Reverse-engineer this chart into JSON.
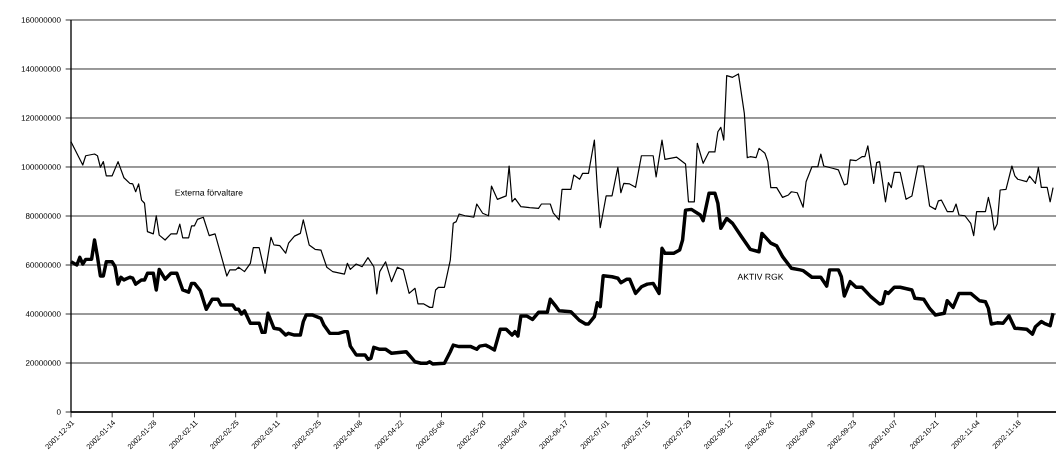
{
  "chart_data": {
    "type": "line",
    "xlim": [
      "2001-12-31",
      "2002-12-01"
    ],
    "xticks": [
      "2001-12-31",
      "2002-01-14",
      "2002-01-28",
      "2002-02-11",
      "2002-02-25",
      "2002-03-11",
      "2002-03-25",
      "2002-04-08",
      "2002-04-22",
      "2002-05-06",
      "2002-05-20",
      "2002-06-03",
      "2002-06-17",
      "2002-07-01",
      "2002-07-15",
      "2002-07-29",
      "2002-08-12",
      "2002-08-26",
      "2002-09-09",
      "2002-09-23",
      "2002-10-07",
      "2002-10-21",
      "2002-11-04",
      "2002-11-18"
    ],
    "ylim": [
      0,
      160000000
    ],
    "yticks": [
      0,
      20000000,
      40000000,
      60000000,
      80000000,
      100000000,
      120000000,
      140000000,
      160000000
    ],
    "grid": "y",
    "legend": false,
    "line_style": "solid",
    "series": [
      {
        "name": "Externa förvaltare",
        "color": "#000000",
        "x": [
          "2001-12-31",
          "2002-01-04",
          "2002-01-05",
          "2002-01-08",
          "2002-01-09",
          "2002-01-10",
          "2002-01-11",
          "2002-01-12",
          "2002-01-14",
          "2002-01-16",
          "2002-01-18",
          "2002-01-20",
          "2002-01-21",
          "2002-01-22",
          "2002-01-23",
          "2002-01-24",
          "2002-01-25",
          "2002-01-26",
          "2002-01-28",
          "2002-01-29",
          "2002-01-30",
          "2002-02-01",
          "2002-02-03",
          "2002-02-05",
          "2002-02-06",
          "2002-02-07",
          "2002-02-09",
          "2002-02-10",
          "2002-02-11",
          "2002-02-12",
          "2002-02-14",
          "2002-02-16",
          "2002-02-18",
          "2002-02-20",
          "2002-02-22",
          "2002-02-23",
          "2002-02-25",
          "2002-02-26",
          "2002-02-28",
          "2002-03-02",
          "2002-03-03",
          "2002-03-05",
          "2002-03-07",
          "2002-03-09",
          "2002-03-10",
          "2002-03-12",
          "2002-03-14",
          "2002-03-15",
          "2002-03-17",
          "2002-03-19",
          "2002-03-20",
          "2002-03-22",
          "2002-03-24",
          "2002-03-26",
          "2002-03-28",
          "2002-03-30",
          "2002-04-03",
          "2002-04-04",
          "2002-04-05",
          "2002-04-07",
          "2002-04-09",
          "2002-04-11",
          "2002-04-13",
          "2002-04-14",
          "2002-04-15",
          "2002-04-17",
          "2002-04-19",
          "2002-04-21",
          "2002-04-23",
          "2002-04-25",
          "2002-04-27",
          "2002-04-28",
          "2002-04-30",
          "2002-05-02",
          "2002-05-03",
          "2002-05-04",
          "2002-05-05",
          "2002-05-07",
          "2002-05-09",
          "2002-05-10",
          "2002-05-11",
          "2002-05-12",
          "2002-05-14",
          "2002-05-17",
          "2002-05-18",
          "2002-05-20",
          "2002-05-22",
          "2002-05-23",
          "2002-05-25",
          "2002-05-28",
          "2002-05-29",
          "2002-05-30",
          "2002-05-31",
          "2002-06-02",
          "2002-06-05",
          "2002-06-08",
          "2002-06-09",
          "2002-06-12",
          "2002-06-13",
          "2002-06-15",
          "2002-06-16",
          "2002-06-19",
          "2002-06-20",
          "2002-06-22",
          "2002-06-23",
          "2002-06-25",
          "2002-06-27",
          "2002-06-28",
          "2002-06-29",
          "2002-07-01",
          "2002-07-03",
          "2002-07-05",
          "2002-07-06",
          "2002-07-07",
          "2002-07-09",
          "2002-07-11",
          "2002-07-13",
          "2002-07-17",
          "2002-07-18",
          "2002-07-20",
          "2002-07-21",
          "2002-07-25",
          "2002-07-28",
          "2002-07-29",
          "2002-07-31",
          "2002-08-01",
          "2002-08-03",
          "2002-08-05",
          "2002-08-07",
          "2002-08-08",
          "2002-08-09",
          "2002-08-10",
          "2002-08-11",
          "2002-08-13",
          "2002-08-15",
          "2002-08-17",
          "2002-08-18",
          "2002-08-19",
          "2002-08-21",
          "2002-08-22",
          "2002-08-24",
          "2002-08-25",
          "2002-08-26",
          "2002-08-28",
          "2002-08-30",
          "2002-09-01",
          "2002-09-02",
          "2002-09-04",
          "2002-09-06",
          "2002-09-07",
          "2002-09-09",
          "2002-09-11",
          "2002-09-12",
          "2002-09-13",
          "2002-09-16",
          "2002-09-18",
          "2002-09-20",
          "2002-09-21",
          "2002-09-22",
          "2002-09-24",
          "2002-09-26",
          "2002-09-27",
          "2002-09-28",
          "2002-09-30",
          "2002-10-01",
          "2002-10-02",
          "2002-10-04",
          "2002-10-05",
          "2002-10-06",
          "2002-10-07",
          "2002-10-09",
          "2002-10-11",
          "2002-10-13",
          "2002-10-15",
          "2002-10-17",
          "2002-10-19",
          "2002-10-21",
          "2002-10-22",
          "2002-10-23",
          "2002-10-25",
          "2002-10-27",
          "2002-10-28",
          "2002-10-29",
          "2002-10-31",
          "2002-11-02",
          "2002-11-03",
          "2002-11-04",
          "2002-11-07",
          "2002-11-08",
          "2002-11-09",
          "2002-11-10",
          "2002-11-11",
          "2002-11-12",
          "2002-11-14",
          "2002-11-16",
          "2002-11-17",
          "2002-11-18",
          "2002-11-21",
          "2002-11-22",
          "2002-11-24",
          "2002-11-25",
          "2002-11-26",
          "2002-11-28",
          "2002-11-29",
          "2002-11-30"
        ],
        "values": [
          110300000.0,
          100800000.0,
          104600000.0,
          105300000.0,
          104600000.0,
          99900000.0,
          102200000.0,
          96400000.0,
          96400000.0,
          102200000.0,
          95600000.0,
          93300000.0,
          93100000.0,
          89900000.0,
          93100000.0,
          86500000.0,
          85200000.0,
          73600000.0,
          72700000.0,
          80100000.0,
          72200000.0,
          70200000.0,
          72700000.0,
          72700000.0,
          76700000.0,
          71100000.0,
          71100000.0,
          76000000.0,
          76000000.0,
          78600000.0,
          79500000.0,
          72000000.0,
          72700000.0,
          64100000.0,
          55500000.0,
          58000000.0,
          58000000.0,
          59100000.0,
          57300000.0,
          60700000.0,
          67100000.0,
          67100000.0,
          56600000.0,
          71300000.0,
          68200000.0,
          67900000.0,
          64800000.0,
          68900000.0,
          71800000.0,
          72900000.0,
          78400000.0,
          68200000.0,
          66400000.0,
          66100000.0,
          59100000.0,
          57300000.0,
          56300000.0,
          60700000.0,
          58200000.0,
          60400000.0,
          59300000.0,
          63000000.0,
          59300000.0,
          48200000.0,
          57300000.0,
          61300000.0,
          53200000.0,
          59100000.0,
          58000000.0,
          48400000.0,
          50500000.0,
          44100000.0,
          44100000.0,
          42700000.0,
          42700000.0,
          49800000.0,
          50900000.0,
          50900000.0,
          62000000.0,
          77000000.0,
          77700000.0,
          80800000.0,
          80100000.0,
          79500000.0,
          84900000.0,
          81100000.0,
          80100000.0,
          92200000.0,
          86800000.0,
          88200000.0,
          100400000.0,
          85800000.0,
          87200000.0,
          83800000.0,
          83400000.0,
          83100000.0,
          84900000.0,
          84900000.0,
          81300000.0,
          78400000.0,
          90900000.0,
          90900000.0,
          96700000.0,
          95000000.0,
          97400000.0,
          97400000.0,
          111000000.0,
          91300000.0,
          75200000.0,
          88200000.0,
          88200000.0,
          99900000.0,
          89500000.0,
          93300000.0,
          93100000.0,
          91700000.0,
          104600000.0,
          104600000.0,
          96000000.0,
          111000000.0,
          103100000.0,
          104000000.0,
          101200000.0,
          85800000.0,
          85800000.0,
          109700000.0,
          101500000.0,
          106200000.0,
          106200000.0,
          114400000.0,
          116200000.0,
          111000000.0,
          137300000.0,
          136600000.0,
          138000000.0,
          121900000.0,
          103800000.0,
          104200000.0,
          103800000.0,
          107600000.0,
          105600000.0,
          102200000.0,
          91600000.0,
          91600000.0,
          87600000.0,
          88600000.0,
          89900000.0,
          89500000.0,
          83600000.0,
          94000000.0,
          100100000.0,
          100100000.0,
          105300000.0,
          100400000.0,
          99500000.0,
          98800000.0,
          92700000.0,
          93100000.0,
          102900000.0,
          102600000.0,
          104200000.0,
          104200000.0,
          108600000.0,
          93300000.0,
          101800000.0,
          102200000.0,
          85800000.0,
          93600000.0,
          91600000.0,
          97800000.0,
          97800000.0,
          86800000.0,
          88200000.0,
          100400000.0,
          100400000.0,
          84100000.0,
          82700000.0,
          86200000.0,
          86500000.0,
          81800000.0,
          81800000.0,
          84900000.0,
          80400000.0,
          80100000.0,
          77000000.0,
          72000000.0,
          81800000.0,
          81800000.0,
          87600000.0,
          82400000.0,
          74300000.0,
          76700000.0,
          90600000.0,
          90900000.0,
          100400000.0,
          96400000.0,
          95000000.0,
          94000000.0,
          96300000.0,
          93300000.0,
          99900000.0,
          91700000.0,
          91700000.0,
          85800000.0,
          91600000.0
        ]
      },
      {
        "name": "AKTIV RGK",
        "color": "#000000",
        "x": [
          "2001-12-31",
          "2002-01-02",
          "2002-01-03",
          "2002-01-04",
          "2002-01-05",
          "2002-01-07",
          "2002-01-08",
          "2002-01-09",
          "2002-01-10",
          "2002-01-11",
          "2002-01-12",
          "2002-01-14",
          "2002-01-15",
          "2002-01-16",
          "2002-01-17",
          "2002-01-18",
          "2002-01-20",
          "2002-01-21",
          "2002-01-22",
          "2002-01-24",
          "2002-01-25",
          "2002-01-26",
          "2002-01-28",
          "2002-01-29",
          "2002-01-30",
          "2002-02-01",
          "2002-02-03",
          "2002-02-05",
          "2002-02-07",
          "2002-02-09",
          "2002-02-10",
          "2002-02-11",
          "2002-02-13",
          "2002-02-15",
          "2002-02-17",
          "2002-02-19",
          "2002-02-20",
          "2002-02-24",
          "2002-02-25",
          "2002-02-26",
          "2002-02-27",
          "2002-02-28",
          "2002-03-02",
          "2002-03-05",
          "2002-03-06",
          "2002-03-07",
          "2002-03-08",
          "2002-03-10",
          "2002-03-12",
          "2002-03-14",
          "2002-03-15",
          "2002-03-17",
          "2002-03-19",
          "2002-03-20",
          "2002-03-21",
          "2002-03-23",
          "2002-03-26",
          "2002-03-27",
          "2002-03-29",
          "2002-04-01",
          "2002-04-03",
          "2002-04-04",
          "2002-04-05",
          "2002-04-07",
          "2002-04-10",
          "2002-04-11",
          "2002-04-12",
          "2002-04-13",
          "2002-04-15",
          "2002-04-17",
          "2002-04-19",
          "2002-04-24",
          "2002-04-26",
          "2002-04-27",
          "2002-04-29",
          "2002-05-01",
          "2002-05-02",
          "2002-05-03",
          "2002-05-07",
          "2002-05-09",
          "2002-05-10",
          "2002-05-12",
          "2002-05-16",
          "2002-05-18",
          "2002-05-19",
          "2002-05-21",
          "2002-05-22",
          "2002-05-24",
          "2002-05-26",
          "2002-05-28",
          "2002-05-30",
          "2002-05-31",
          "2002-06-01",
          "2002-06-02",
          "2002-06-04",
          "2002-06-06",
          "2002-06-08",
          "2002-06-11",
          "2002-06-12",
          "2002-06-14",
          "2002-06-15",
          "2002-06-19",
          "2002-06-22",
          "2002-06-24",
          "2002-06-25",
          "2002-06-27",
          "2002-06-28",
          "2002-06-29",
          "2002-06-30",
          "2002-07-03",
          "2002-07-05",
          "2002-07-06",
          "2002-07-08",
          "2002-07-09",
          "2002-07-11",
          "2002-07-13",
          "2002-07-15",
          "2002-07-17",
          "2002-07-19",
          "2002-07-20",
          "2002-07-21",
          "2002-07-24",
          "2002-07-26",
          "2002-07-27",
          "2002-07-28",
          "2002-07-30",
          "2002-08-02",
          "2002-08-03",
          "2002-08-05",
          "2002-08-07",
          "2002-08-08",
          "2002-08-09",
          "2002-08-11",
          "2002-08-13",
          "2002-08-16",
          "2002-08-19",
          "2002-08-22",
          "2002-08-23",
          "2002-08-26",
          "2002-08-28",
          "2002-08-30",
          "2002-09-02",
          "2002-09-05",
          "2002-09-06",
          "2002-09-09",
          "2002-09-12",
          "2002-09-14",
          "2002-09-15",
          "2002-09-18",
          "2002-09-19",
          "2002-09-20",
          "2002-09-22",
          "2002-09-24",
          "2002-09-26",
          "2002-09-29",
          "2002-10-02",
          "2002-10-03",
          "2002-10-04",
          "2002-10-05",
          "2002-10-07",
          "2002-10-09",
          "2002-10-13",
          "2002-10-14",
          "2002-10-17",
          "2002-10-19",
          "2002-10-21",
          "2002-10-24",
          "2002-10-25",
          "2002-10-27",
          "2002-10-29",
          "2002-10-31",
          "2002-11-02",
          "2002-11-05",
          "2002-11-07",
          "2002-11-08",
          "2002-11-09",
          "2002-11-11",
          "2002-11-13",
          "2002-11-15",
          "2002-11-17",
          "2002-11-21",
          "2002-11-23",
          "2002-11-24",
          "2002-11-26",
          "2002-11-27",
          "2002-11-29",
          "2002-11-30"
        ],
        "values": [
          61300000.0,
          60000000.0,
          63100000.0,
          60400000.0,
          62300000.0,
          62300000.0,
          70200000.0,
          63400000.0,
          55500000.0,
          55500000.0,
          61300000.0,
          61300000.0,
          59300000.0,
          52200000.0,
          55000000.0,
          53900000.0,
          55000000.0,
          54600000.0,
          52200000.0,
          53900000.0,
          53900000.0,
          56600000.0,
          56600000.0,
          49800000.0,
          58200000.0,
          54200000.0,
          56600000.0,
          56600000.0,
          49800000.0,
          48900000.0,
          52500000.0,
          52500000.0,
          49500000.0,
          41900000.0,
          46000000.0,
          46000000.0,
          43700000.0,
          43700000.0,
          41900000.0,
          41900000.0,
          40000000.0,
          41300000.0,
          36200000.0,
          36200000.0,
          32500000.0,
          32500000.0,
          40300000.0,
          34200000.0,
          33800000.0,
          31400000.0,
          32100000.0,
          31400000.0,
          31400000.0,
          36900000.0,
          39600000.0,
          39600000.0,
          38200000.0,
          35500000.0,
          32100000.0,
          32100000.0,
          32800000.0,
          32800000.0,
          26900000.0,
          23300000.0,
          23300000.0,
          21500000.0,
          21900000.0,
          26400000.0,
          25600000.0,
          25600000.0,
          24000000.0,
          24600000.0,
          21900000.0,
          20500000.0,
          19900000.0,
          19900000.0,
          20500000.0,
          19600000.0,
          19900000.0,
          24600000.0,
          27300000.0,
          26700000.0,
          26700000.0,
          25600000.0,
          26900000.0,
          27300000.0,
          26700000.0,
          25300000.0,
          33800000.0,
          33800000.0,
          31400000.0,
          32800000.0,
          31000000.0,
          39200000.0,
          39200000.0,
          37800000.0,
          40700000.0,
          40700000.0,
          46000000.0,
          43000000.0,
          41300000.0,
          40900000.0,
          37300000.0,
          35900000.0,
          35900000.0,
          38900000.0,
          44600000.0,
          43000000.0,
          55600000.0,
          55200000.0,
          54600000.0,
          52800000.0,
          54200000.0,
          54200000.0,
          48400000.0,
          51100000.0,
          52200000.0,
          52500000.0,
          48400000.0,
          66800000.0,
          64800000.0,
          64800000.0,
          66100000.0,
          70200000.0,
          82400000.0,
          82700000.0,
          80400000.0,
          78100000.0,
          89300000.0,
          89300000.0,
          85200000.0,
          75000000.0,
          79000000.0,
          77000000.0,
          71600000.0,
          66400000.0,
          65400000.0,
          72900000.0,
          68900000.0,
          67800000.0,
          63400000.0,
          58700000.0,
          58000000.0,
          57700000.0,
          55000000.0,
          55000000.0,
          51400000.0,
          58000000.0,
          58000000.0,
          55200000.0,
          47300000.0,
          53200000.0,
          50900000.0,
          50900000.0,
          47100000.0,
          44100000.0,
          44400000.0,
          49100000.0,
          48400000.0,
          50900000.0,
          50900000.0,
          49800000.0,
          46400000.0,
          46000000.0,
          42300000.0,
          39600000.0,
          40300000.0,
          45400000.0,
          42700000.0,
          48400000.0,
          48400000.0,
          48400000.0,
          45400000.0,
          45000000.0,
          42300000.0,
          35900000.0,
          36400000.0,
          36200000.0,
          39300000.0,
          34200000.0,
          33800000.0,
          31800000.0,
          34800000.0,
          36900000.0,
          36200000.0,
          35200000.0,
          40300000.0
        ]
      }
    ]
  }
}
